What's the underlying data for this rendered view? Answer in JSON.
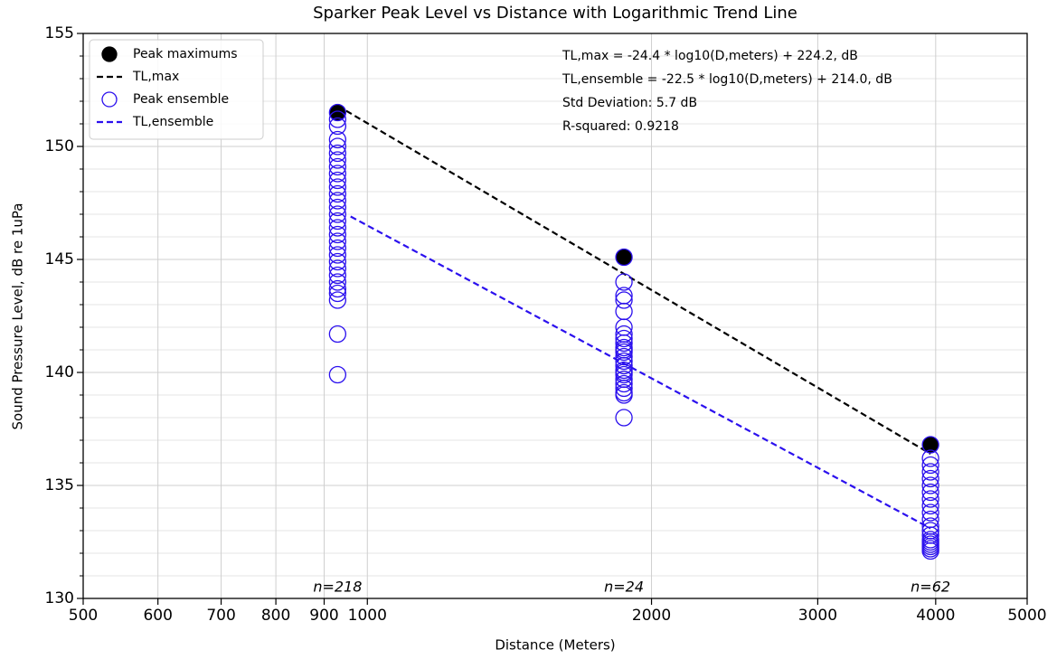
{
  "chart_data": {
    "type": "scatter",
    "title": "Sparker Peak Level vs Distance with Logarithmic Trend Line",
    "xlabel": "Distance (Meters)",
    "ylabel": "Sound Pressure Level, dB re 1uPa",
    "xscale": "log",
    "xlim": [
      500,
      5000
    ],
    "xticks": [
      500,
      600,
      700,
      800,
      900,
      1000,
      2000,
      3000,
      4000,
      5000
    ],
    "ylim": [
      130,
      155
    ],
    "yticks": [
      130,
      135,
      140,
      145,
      150,
      155
    ],
    "y_minor_ticks": [
      131,
      132,
      133,
      134,
      136,
      137,
      138,
      139,
      141,
      142,
      143,
      144,
      146,
      147,
      148,
      149,
      151,
      152,
      153,
      154
    ],
    "grid": true,
    "legend": "upper left",
    "series": [
      {
        "name": "Peak maximums",
        "color": "#000000",
        "marker": "filled",
        "x": [
          930,
          1870,
          3950
        ],
        "values": [
          151.5,
          145.1,
          136.8
        ]
      },
      {
        "name": "TL,max",
        "color": "#000000",
        "linestyle": "dashed",
        "x": [
          930,
          3950
        ],
        "values": [
          151.8,
          136.4
        ]
      },
      {
        "name": "Peak ensemble",
        "color": "#2b10ee",
        "marker": "open",
        "x": [
          930,
          930,
          930,
          930,
          930,
          930,
          930,
          930,
          930,
          930,
          930,
          930,
          930,
          930,
          930,
          930,
          930,
          930,
          930,
          930,
          930,
          930,
          930,
          930,
          930,
          930,
          930,
          930,
          930,
          930,
          1870,
          1870,
          1870,
          1870,
          1870,
          1870,
          1870,
          1870,
          1870,
          1870,
          1870,
          1870,
          1870,
          1870,
          1870,
          1870,
          1870,
          1870,
          1870,
          1870,
          1870,
          1870,
          1870,
          1870,
          3950,
          3950,
          3950,
          3950,
          3950,
          3950,
          3950,
          3950,
          3950,
          3950,
          3950,
          3950,
          3950,
          3950,
          3950,
          3950,
          3950,
          3950,
          3950,
          3950
        ],
        "values": [
          151.5,
          151.2,
          150.9,
          150.3,
          150.0,
          149.7,
          149.4,
          149.1,
          148.8,
          148.5,
          148.2,
          147.9,
          147.6,
          147.3,
          147.0,
          146.7,
          146.4,
          146.1,
          145.8,
          145.5,
          145.2,
          144.9,
          144.6,
          144.3,
          144.0,
          143.7,
          143.5,
          143.2,
          141.7,
          139.9,
          145.1,
          144.0,
          143.4,
          143.2,
          142.7,
          142.0,
          141.7,
          141.5,
          141.3,
          141.1,
          140.9,
          140.7,
          140.5,
          140.3,
          140.1,
          139.9,
          139.7,
          139.5,
          139.3,
          139.1,
          139.0,
          138.0,
          140.0,
          141.0,
          136.8,
          136.2,
          135.9,
          135.6,
          135.3,
          135.0,
          134.7,
          134.4,
          134.1,
          133.8,
          133.5,
          133.2,
          133.0,
          132.8,
          132.6,
          132.5,
          132.4,
          132.3,
          132.2,
          132.1
        ]
      },
      {
        "name": "TL,ensemble",
        "color": "#2b10ee",
        "linestyle": "dashed",
        "x": [
          960,
          3950
        ],
        "values": [
          146.9,
          133.1
        ]
      }
    ],
    "annotations": [
      "TL,max = -24.4 * log10(D,meters) + 224.2, dB",
      "TL,ensemble = -22.5 * log10(D,meters) + 214.0, dB",
      "Std Deviation: 5.7 dB",
      "R-squared: 0.9218"
    ],
    "sample_counts": [
      "n=218",
      "n=24",
      "n=62"
    ]
  }
}
